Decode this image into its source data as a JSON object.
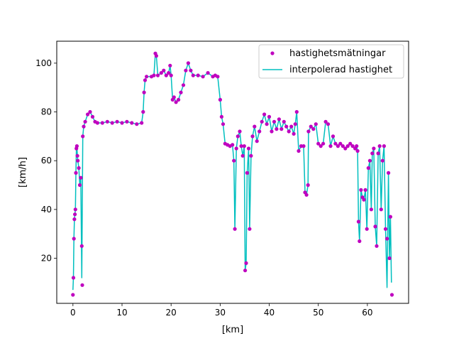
{
  "chart_data": {
    "type": "scatter",
    "title": "",
    "xlabel": "[km]",
    "ylabel": "[km/h]",
    "xlim": [
      -3.3,
      68.4
    ],
    "ylim": [
      1.5,
      109
    ],
    "x_ticks": [
      0,
      10,
      20,
      30,
      40,
      50,
      60
    ],
    "y_ticks": [
      20,
      40,
      60,
      80,
      100
    ],
    "grid": false,
    "legend_position": "top-right",
    "series": [
      {
        "name": "hastighetsmätningar",
        "kind": "markers",
        "color": "#bf00bf",
        "points": [
          [
            0.0,
            5
          ],
          [
            0.1,
            12
          ],
          [
            0.2,
            28
          ],
          [
            0.3,
            36
          ],
          [
            0.4,
            38
          ],
          [
            0.5,
            40
          ],
          [
            0.6,
            55
          ],
          [
            0.7,
            65
          ],
          [
            0.8,
            66
          ],
          [
            0.9,
            62
          ],
          [
            1.0,
            60
          ],
          [
            1.2,
            57
          ],
          [
            1.4,
            50
          ],
          [
            1.6,
            53
          ],
          [
            1.8,
            25
          ],
          [
            1.9,
            9
          ],
          [
            2.0,
            70
          ],
          [
            2.2,
            74
          ],
          [
            2.5,
            76
          ],
          [
            3.0,
            79
          ],
          [
            3.5,
            80
          ],
          [
            4.0,
            78
          ],
          [
            4.5,
            76
          ],
          [
            5.0,
            75.5
          ],
          [
            6.0,
            75.5
          ],
          [
            7.0,
            76
          ],
          [
            8.0,
            75.5
          ],
          [
            9.0,
            76
          ],
          [
            10.0,
            75.5
          ],
          [
            11.0,
            76
          ],
          [
            12.0,
            75.5
          ],
          [
            13.0,
            75
          ],
          [
            14.0,
            75.5
          ],
          [
            14.3,
            80
          ],
          [
            14.5,
            88
          ],
          [
            14.7,
            93
          ],
          [
            15.0,
            94.5
          ],
          [
            16.0,
            94.5
          ],
          [
            16.5,
            95
          ],
          [
            16.8,
            104
          ],
          [
            17.0,
            103
          ],
          [
            17.3,
            95
          ],
          [
            18.0,
            96
          ],
          [
            18.5,
            97
          ],
          [
            19.0,
            95
          ],
          [
            19.5,
            96
          ],
          [
            19.8,
            99
          ],
          [
            20.0,
            95
          ],
          [
            20.3,
            85
          ],
          [
            20.6,
            86
          ],
          [
            21.0,
            84
          ],
          [
            21.5,
            85
          ],
          [
            22.0,
            88
          ],
          [
            22.5,
            91
          ],
          [
            23.0,
            97
          ],
          [
            23.5,
            100
          ],
          [
            24.0,
            97
          ],
          [
            24.5,
            95
          ],
          [
            25.5,
            95
          ],
          [
            26.5,
            94.5
          ],
          [
            27.5,
            96
          ],
          [
            28.5,
            94.5
          ],
          [
            29.0,
            95
          ],
          [
            29.5,
            94.5
          ],
          [
            30.0,
            85
          ],
          [
            30.3,
            78
          ],
          [
            30.6,
            75
          ],
          [
            31.0,
            67
          ],
          [
            31.5,
            66.5
          ],
          [
            32.0,
            66
          ],
          [
            32.5,
            66.5
          ],
          [
            32.8,
            60
          ],
          [
            33.0,
            32
          ],
          [
            33.3,
            65
          ],
          [
            33.6,
            70
          ],
          [
            34.0,
            72
          ],
          [
            34.3,
            66
          ],
          [
            34.6,
            62
          ],
          [
            34.9,
            66
          ],
          [
            35.1,
            15
          ],
          [
            35.3,
            18
          ],
          [
            35.5,
            55
          ],
          [
            35.8,
            65
          ],
          [
            36.0,
            32
          ],
          [
            36.3,
            62
          ],
          [
            36.6,
            70
          ],
          [
            37.0,
            74
          ],
          [
            37.5,
            68
          ],
          [
            38.0,
            72
          ],
          [
            38.5,
            76
          ],
          [
            39.0,
            79
          ],
          [
            39.5,
            75
          ],
          [
            40.0,
            78
          ],
          [
            40.5,
            72
          ],
          [
            41.0,
            76
          ],
          [
            41.5,
            73
          ],
          [
            42.0,
            77
          ],
          [
            42.5,
            73
          ],
          [
            43.0,
            76
          ],
          [
            43.5,
            74
          ],
          [
            44.0,
            72
          ],
          [
            44.5,
            74
          ],
          [
            45.0,
            71
          ],
          [
            45.3,
            75
          ],
          [
            45.6,
            80
          ],
          [
            46.0,
            64
          ],
          [
            46.5,
            66
          ],
          [
            47.0,
            66
          ],
          [
            47.3,
            47
          ],
          [
            47.6,
            46
          ],
          [
            47.9,
            50
          ],
          [
            48.0,
            72
          ],
          [
            48.5,
            74
          ],
          [
            49.0,
            73
          ],
          [
            49.5,
            75
          ],
          [
            50.0,
            67
          ],
          [
            50.5,
            66
          ],
          [
            51.0,
            67
          ],
          [
            51.5,
            76
          ],
          [
            52.0,
            75
          ],
          [
            52.5,
            66
          ],
          [
            53.0,
            70
          ],
          [
            53.5,
            67
          ],
          [
            54.0,
            66
          ],
          [
            54.5,
            67
          ],
          [
            55.0,
            66
          ],
          [
            55.5,
            65
          ],
          [
            56.0,
            66
          ],
          [
            56.5,
            67
          ],
          [
            57.0,
            66
          ],
          [
            57.5,
            65
          ],
          [
            57.8,
            66
          ],
          [
            58.0,
            64
          ],
          [
            58.2,
            35
          ],
          [
            58.4,
            27
          ],
          [
            58.7,
            48
          ],
          [
            59.0,
            45
          ],
          [
            59.3,
            44
          ],
          [
            59.6,
            48
          ],
          [
            59.9,
            32
          ],
          [
            60.2,
            57
          ],
          [
            60.5,
            60
          ],
          [
            60.8,
            40
          ],
          [
            61.0,
            63
          ],
          [
            61.3,
            65
          ],
          [
            61.6,
            33
          ],
          [
            61.9,
            25
          ],
          [
            62.2,
            63
          ],
          [
            62.5,
            66
          ],
          [
            62.8,
            40
          ],
          [
            63.1,
            60
          ],
          [
            63.4,
            66
          ],
          [
            63.7,
            32
          ],
          [
            64.0,
            28
          ],
          [
            64.3,
            55
          ],
          [
            64.5,
            20
          ],
          [
            64.7,
            37
          ],
          [
            65.0,
            5
          ]
        ]
      },
      {
        "name": "interpolerad hastighet",
        "kind": "line",
        "color": "#00bfbf",
        "points": [
          [
            0.0,
            7
          ],
          [
            0.1,
            12
          ],
          [
            0.2,
            28
          ],
          [
            0.3,
            36
          ],
          [
            0.4,
            38
          ],
          [
            0.5,
            40
          ],
          [
            0.6,
            55
          ],
          [
            0.7,
            65
          ],
          [
            0.8,
            66
          ],
          [
            0.9,
            62
          ],
          [
            1.0,
            60
          ],
          [
            1.2,
            57
          ],
          [
            1.4,
            50
          ],
          [
            1.6,
            53
          ],
          [
            1.8,
            12
          ],
          [
            2.0,
            70
          ],
          [
            2.2,
            74
          ],
          [
            2.5,
            76
          ],
          [
            3.0,
            79
          ],
          [
            3.5,
            80
          ],
          [
            4.0,
            78
          ],
          [
            4.5,
            76
          ],
          [
            5.0,
            75.5
          ],
          [
            6.0,
            75.5
          ],
          [
            7.0,
            76
          ],
          [
            8.0,
            75.5
          ],
          [
            9.0,
            76
          ],
          [
            10.0,
            75.5
          ],
          [
            11.0,
            76
          ],
          [
            12.0,
            75.5
          ],
          [
            13.0,
            75
          ],
          [
            14.0,
            75.5
          ],
          [
            14.3,
            80
          ],
          [
            14.5,
            88
          ],
          [
            14.7,
            93
          ],
          [
            15.0,
            94.5
          ],
          [
            16.0,
            94.5
          ],
          [
            16.5,
            95
          ],
          [
            16.8,
            104
          ],
          [
            17.0,
            103
          ],
          [
            17.3,
            95
          ],
          [
            18.0,
            96
          ],
          [
            18.5,
            97
          ],
          [
            19.0,
            95
          ],
          [
            19.5,
            96
          ],
          [
            19.8,
            99
          ],
          [
            20.0,
            95
          ],
          [
            20.3,
            85
          ],
          [
            20.6,
            86
          ],
          [
            21.0,
            84
          ],
          [
            21.5,
            85
          ],
          [
            22.0,
            88
          ],
          [
            22.5,
            91
          ],
          [
            23.0,
            97
          ],
          [
            23.5,
            100
          ],
          [
            24.0,
            97
          ],
          [
            24.5,
            95
          ],
          [
            25.5,
            95
          ],
          [
            26.5,
            94.5
          ],
          [
            27.5,
            96
          ],
          [
            28.5,
            94.5
          ],
          [
            29.0,
            95
          ],
          [
            29.5,
            94.5
          ],
          [
            30.0,
            85
          ],
          [
            30.3,
            78
          ],
          [
            30.6,
            75
          ],
          [
            31.0,
            67
          ],
          [
            31.5,
            66.5
          ],
          [
            32.0,
            66
          ],
          [
            32.5,
            66.5
          ],
          [
            32.8,
            60
          ],
          [
            33.0,
            32
          ],
          [
            33.3,
            65
          ],
          [
            33.6,
            70
          ],
          [
            34.0,
            72
          ],
          [
            34.3,
            66
          ],
          [
            34.6,
            62
          ],
          [
            34.9,
            66
          ],
          [
            35.1,
            15
          ],
          [
            35.3,
            18
          ],
          [
            35.5,
            55
          ],
          [
            35.8,
            65
          ],
          [
            36.0,
            32
          ],
          [
            36.3,
            62
          ],
          [
            36.6,
            70
          ],
          [
            37.0,
            74
          ],
          [
            37.5,
            68
          ],
          [
            38.0,
            72
          ],
          [
            38.5,
            76
          ],
          [
            39.0,
            79
          ],
          [
            39.5,
            75
          ],
          [
            40.0,
            78
          ],
          [
            40.5,
            72
          ],
          [
            41.0,
            76
          ],
          [
            41.5,
            73
          ],
          [
            42.0,
            77
          ],
          [
            42.5,
            73
          ],
          [
            43.0,
            76
          ],
          [
            43.5,
            74
          ],
          [
            44.0,
            72
          ],
          [
            44.5,
            74
          ],
          [
            45.0,
            71
          ],
          [
            45.3,
            75
          ],
          [
            45.6,
            80
          ],
          [
            46.0,
            64
          ],
          [
            46.5,
            66
          ],
          [
            47.0,
            66
          ],
          [
            47.3,
            47
          ],
          [
            47.6,
            46
          ],
          [
            47.9,
            50
          ],
          [
            48.0,
            72
          ],
          [
            48.5,
            74
          ],
          [
            49.0,
            73
          ],
          [
            49.5,
            75
          ],
          [
            50.0,
            67
          ],
          [
            50.5,
            66
          ],
          [
            51.0,
            67
          ],
          [
            51.5,
            76
          ],
          [
            52.0,
            75
          ],
          [
            52.5,
            66
          ],
          [
            53.0,
            70
          ],
          [
            53.5,
            67
          ],
          [
            54.0,
            66
          ],
          [
            54.5,
            67
          ],
          [
            55.0,
            66
          ],
          [
            55.5,
            65
          ],
          [
            56.0,
            66
          ],
          [
            56.5,
            67
          ],
          [
            57.0,
            66
          ],
          [
            57.5,
            65
          ],
          [
            57.8,
            66
          ],
          [
            58.0,
            64
          ],
          [
            58.2,
            35
          ],
          [
            58.4,
            27
          ],
          [
            58.7,
            48
          ],
          [
            59.0,
            45
          ],
          [
            59.3,
            44
          ],
          [
            59.6,
            48
          ],
          [
            59.9,
            32
          ],
          [
            60.2,
            57
          ],
          [
            60.5,
            60
          ],
          [
            60.8,
            40
          ],
          [
            61.0,
            63
          ],
          [
            61.3,
            65
          ],
          [
            61.6,
            33
          ],
          [
            61.9,
            25
          ],
          [
            62.2,
            63
          ],
          [
            62.5,
            66
          ],
          [
            62.8,
            40
          ],
          [
            63.1,
            60
          ],
          [
            63.4,
            66
          ],
          [
            63.7,
            32
          ],
          [
            64.0,
            8
          ],
          [
            64.3,
            55
          ],
          [
            64.5,
            20
          ],
          [
            64.7,
            37
          ],
          [
            64.9,
            10
          ]
        ]
      }
    ]
  }
}
